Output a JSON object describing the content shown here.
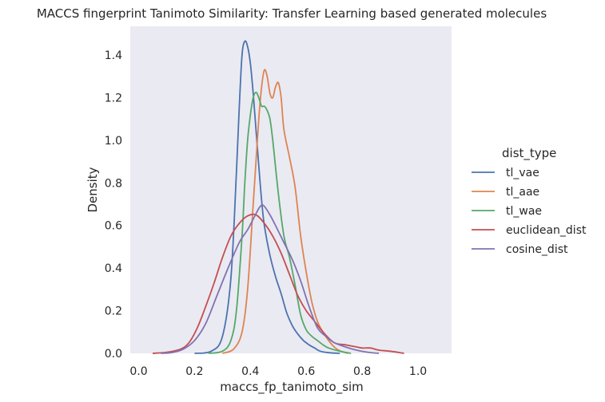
{
  "chart_data": {
    "type": "line",
    "title": "MACCS fingerprint Tanimoto Similarity: Transfer Learning based generated molecules",
    "xlabel": "maccs_fp_tanimoto_sim",
    "ylabel": "Density",
    "xlim": [
      -0.03,
      1.12
    ],
    "ylim": [
      0,
      1.535
    ],
    "xticks": [
      "0.0",
      "0.2",
      "0.4",
      "0.6",
      "0.8",
      "1.0"
    ],
    "xtick_values": [
      0.0,
      0.2,
      0.4,
      0.6,
      0.8,
      1.0
    ],
    "yticks": [
      "0.0",
      "0.2",
      "0.4",
      "0.6",
      "0.8",
      "1.0",
      "1.2",
      "1.4"
    ],
    "ytick_values": [
      0.0,
      0.2,
      0.4,
      0.6,
      0.8,
      1.0,
      1.2,
      1.4
    ],
    "grid": false,
    "background": "#eaeaf2",
    "legend": {
      "title": "dist_type",
      "placement": "right"
    },
    "series": [
      {
        "name": "tl_vae",
        "color": "#4c72b0",
        "x": [
          0.2,
          0.26,
          0.3,
          0.33,
          0.35,
          0.36,
          0.37,
          0.38,
          0.39,
          0.4,
          0.41,
          0.42,
          0.43,
          0.44,
          0.45,
          0.47,
          0.49,
          0.51,
          0.53,
          0.55,
          0.57,
          0.59,
          0.61,
          0.63,
          0.65,
          0.68,
          0.72
        ],
        "y": [
          0.0,
          0.01,
          0.08,
          0.35,
          0.85,
          1.15,
          1.4,
          1.465,
          1.44,
          1.36,
          1.22,
          1.05,
          0.88,
          0.72,
          0.6,
          0.46,
          0.36,
          0.28,
          0.19,
          0.13,
          0.09,
          0.06,
          0.04,
          0.025,
          0.01,
          0.003,
          0.0
        ]
      },
      {
        "name": "tl_aae",
        "color": "#dd8452",
        "x": [
          0.3,
          0.34,
          0.37,
          0.39,
          0.41,
          0.42,
          0.43,
          0.44,
          0.45,
          0.46,
          0.47,
          0.48,
          0.49,
          0.5,
          0.51,
          0.52,
          0.54,
          0.56,
          0.58,
          0.6,
          0.62,
          0.64,
          0.66,
          0.68,
          0.7,
          0.72,
          0.75
        ],
        "y": [
          0.0,
          0.02,
          0.1,
          0.3,
          0.7,
          0.9,
          1.1,
          1.25,
          1.33,
          1.3,
          1.22,
          1.2,
          1.25,
          1.27,
          1.2,
          1.05,
          0.92,
          0.78,
          0.55,
          0.38,
          0.24,
          0.15,
          0.1,
          0.06,
          0.03,
          0.012,
          0.0
        ]
      },
      {
        "name": "tl_wae",
        "color": "#55a868",
        "x": [
          0.25,
          0.3,
          0.33,
          0.35,
          0.37,
          0.38,
          0.39,
          0.4,
          0.41,
          0.42,
          0.43,
          0.44,
          0.45,
          0.46,
          0.47,
          0.48,
          0.5,
          0.52,
          0.54,
          0.56,
          0.58,
          0.6,
          0.62,
          0.64,
          0.66,
          0.68,
          0.72,
          0.76
        ],
        "y": [
          0.0,
          0.01,
          0.06,
          0.2,
          0.55,
          0.8,
          1.0,
          1.12,
          1.2,
          1.225,
          1.2,
          1.16,
          1.16,
          1.14,
          1.1,
          1.0,
          0.75,
          0.55,
          0.45,
          0.32,
          0.18,
          0.11,
          0.08,
          0.06,
          0.04,
          0.025,
          0.01,
          0.0
        ]
      },
      {
        "name": "euclidean_dist",
        "color": "#c44e52",
        "x": [
          0.05,
          0.1,
          0.15,
          0.18,
          0.21,
          0.24,
          0.27,
          0.3,
          0.33,
          0.36,
          0.39,
          0.42,
          0.45,
          0.48,
          0.51,
          0.54,
          0.57,
          0.6,
          0.63,
          0.66,
          0.7,
          0.74,
          0.78,
          0.8,
          0.83,
          0.86,
          0.9,
          0.95
        ],
        "y": [
          0.0,
          0.005,
          0.02,
          0.05,
          0.12,
          0.22,
          0.33,
          0.45,
          0.55,
          0.61,
          0.645,
          0.65,
          0.61,
          0.55,
          0.47,
          0.37,
          0.27,
          0.2,
          0.15,
          0.1,
          0.05,
          0.04,
          0.03,
          0.025,
          0.025,
          0.015,
          0.01,
          0.0
        ]
      },
      {
        "name": "cosine_dist",
        "color": "#8172b3",
        "x": [
          0.08,
          0.12,
          0.16,
          0.2,
          0.24,
          0.28,
          0.32,
          0.36,
          0.39,
          0.41,
          0.43,
          0.44,
          0.45,
          0.47,
          0.49,
          0.52,
          0.55,
          0.58,
          0.61,
          0.64,
          0.67,
          0.7,
          0.74,
          0.78,
          0.82,
          0.86
        ],
        "y": [
          0.0,
          0.004,
          0.02,
          0.06,
          0.14,
          0.27,
          0.4,
          0.52,
          0.58,
          0.63,
          0.68,
          0.695,
          0.69,
          0.65,
          0.6,
          0.52,
          0.44,
          0.34,
          0.22,
          0.12,
          0.08,
          0.05,
          0.03,
          0.015,
          0.005,
          0.0
        ]
      }
    ]
  }
}
